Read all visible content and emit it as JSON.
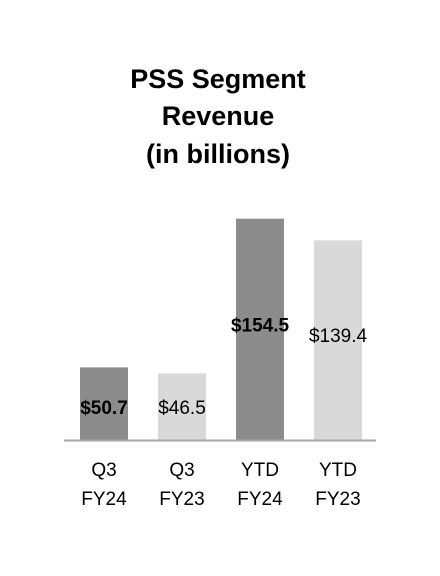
{
  "chart_data": {
    "type": "bar",
    "title_lines": [
      "PSS Segment",
      "Revenue",
      "(in billions)"
    ],
    "categories": [
      [
        "Q3",
        "FY24"
      ],
      [
        "Q3",
        "FY23"
      ],
      [
        "YTD",
        "FY24"
      ],
      [
        "YTD",
        "FY23"
      ]
    ],
    "values": [
      50.7,
      46.5,
      154.5,
      139.4
    ],
    "value_labels": [
      "$50.7",
      "$46.5",
      "$154.5",
      "$139.4"
    ],
    "value_label_bold": [
      true,
      false,
      true,
      false
    ],
    "bar_colors": [
      "#8c8c8c",
      "#d9d9d9",
      "#8c8c8c",
      "#d9d9d9"
    ],
    "axis_color": "#a6a6a6",
    "ylim": [
      0,
      155
    ],
    "grid": false
  }
}
